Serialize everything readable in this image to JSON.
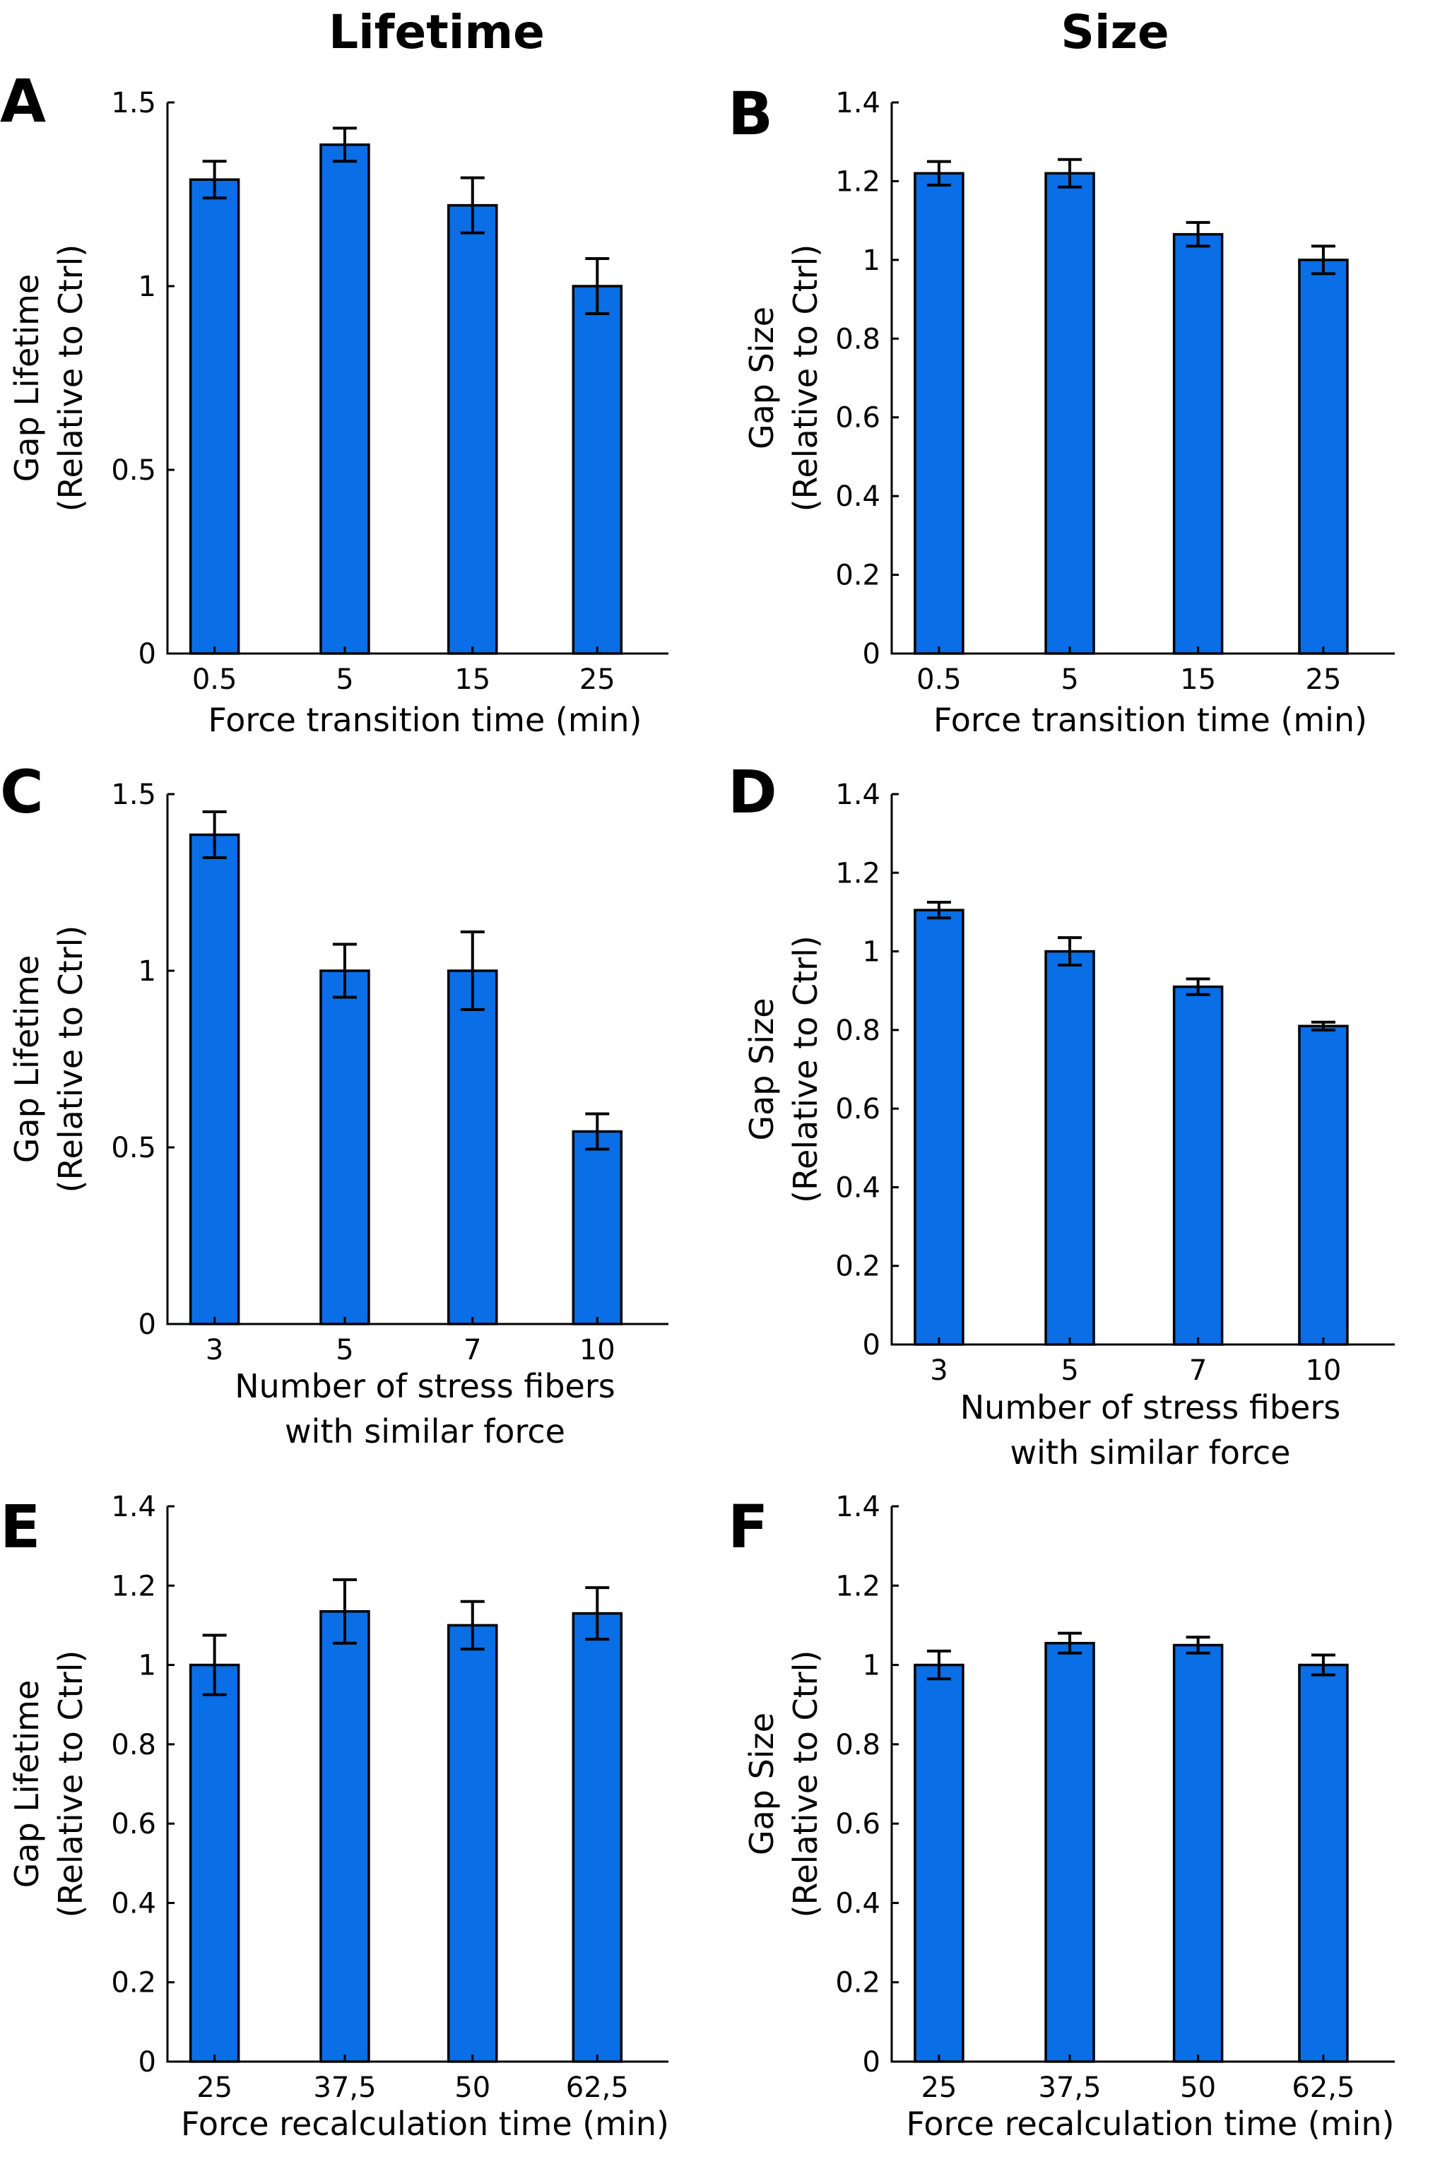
{
  "titles": {
    "left": "Lifetime",
    "right": "Size"
  },
  "colors": {
    "bar": "#0a6ee6",
    "axis": "#000000"
  },
  "chart_data": [
    {
      "panel": "A",
      "type": "bar",
      "categories": [
        "0.5",
        "5",
        "15",
        "25"
      ],
      "values": [
        1.29,
        1.385,
        1.22,
        1.0
      ],
      "errors": [
        0.05,
        0.045,
        0.075,
        0.075
      ],
      "ylim": [
        0,
        1.5
      ],
      "yticks": [
        0,
        0.5,
        1,
        1.5
      ],
      "ytick_labels": [
        "0",
        "0.5",
        "1",
        "1.5"
      ],
      "ylabel": [
        "Gap Lifetime",
        "(Relative to Ctrl)"
      ],
      "xlabel": [
        "Force transition time (min)"
      ]
    },
    {
      "panel": "B",
      "type": "bar",
      "categories": [
        "0.5",
        "5",
        "15",
        "25"
      ],
      "values": [
        1.22,
        1.22,
        1.065,
        1.0
      ],
      "errors": [
        0.03,
        0.035,
        0.03,
        0.035
      ],
      "ylim": [
        0,
        1.4
      ],
      "yticks": [
        0,
        0.2,
        0.4,
        0.6,
        0.8,
        1,
        1.2,
        1.4
      ],
      "ytick_labels": [
        "0",
        "0.2",
        "0.4",
        "0.6",
        "0.8",
        "1",
        "1.2",
        "1.4"
      ],
      "ylabel": [
        "Gap Size",
        "(Relative to Ctrl)"
      ],
      "xlabel": [
        "Force transition time (min)"
      ]
    },
    {
      "panel": "C",
      "type": "bar",
      "categories": [
        "3",
        "5",
        "7",
        "10"
      ],
      "values": [
        1.385,
        1.0,
        1.0,
        0.545
      ],
      "errors": [
        0.065,
        0.075,
        0.11,
        0.05
      ],
      "ylim": [
        0,
        1.5
      ],
      "yticks": [
        0,
        0.5,
        1,
        1.5
      ],
      "ytick_labels": [
        "0",
        "0.5",
        "1",
        "1.5"
      ],
      "ylabel": [
        "Gap Lifetime",
        "(Relative to Ctrl)"
      ],
      "xlabel": [
        "Number of stress fibers",
        "with similar force"
      ]
    },
    {
      "panel": "D",
      "type": "bar",
      "categories": [
        "3",
        "5",
        "7",
        "10"
      ],
      "values": [
        1.105,
        1.0,
        0.91,
        0.81
      ],
      "errors": [
        0.02,
        0.035,
        0.02,
        0.01
      ],
      "ylim": [
        0,
        1.4
      ],
      "yticks": [
        0,
        0.2,
        0.4,
        0.6,
        0.8,
        1,
        1.2,
        1.4
      ],
      "ytick_labels": [
        "0",
        "0.2",
        "0.4",
        "0.6",
        "0.8",
        "1",
        "1.2",
        "1.4"
      ],
      "ylabel": [
        "Gap Size",
        "(Relative to Ctrl)"
      ],
      "xlabel": [
        "Number of stress fibers",
        "with similar force"
      ]
    },
    {
      "panel": "E",
      "type": "bar",
      "categories": [
        "25",
        "37,5",
        "50",
        "62,5"
      ],
      "values": [
        1.0,
        1.135,
        1.1,
        1.13
      ],
      "errors": [
        0.075,
        0.08,
        0.06,
        0.065
      ],
      "ylim": [
        0,
        1.4
      ],
      "yticks": [
        0,
        0.2,
        0.4,
        0.6,
        0.8,
        1,
        1.2,
        1.4
      ],
      "ytick_labels": [
        "0",
        "0.2",
        "0.4",
        "0.6",
        "0.8",
        "1",
        "1.2",
        "1.4"
      ],
      "ylabel": [
        "Gap Lifetime",
        "(Relative to Ctrl)"
      ],
      "xlabel": [
        "Force recalculation time (min)"
      ]
    },
    {
      "panel": "F",
      "type": "bar",
      "categories": [
        "25",
        "37,5",
        "50",
        "62,5"
      ],
      "values": [
        1.0,
        1.055,
        1.05,
        1.0
      ],
      "errors": [
        0.035,
        0.025,
        0.02,
        0.025
      ],
      "ylim": [
        0,
        1.4
      ],
      "yticks": [
        0,
        0.2,
        0.4,
        0.6,
        0.8,
        1,
        1.2,
        1.4
      ],
      "ytick_labels": [
        "0",
        "0.2",
        "0.4",
        "0.6",
        "0.8",
        "1",
        "1.2",
        "1.4"
      ],
      "ylabel": [
        "Gap Size",
        "(Relative to Ctrl)"
      ],
      "xlabel": [
        "Force recalculation time (min)"
      ]
    }
  ]
}
